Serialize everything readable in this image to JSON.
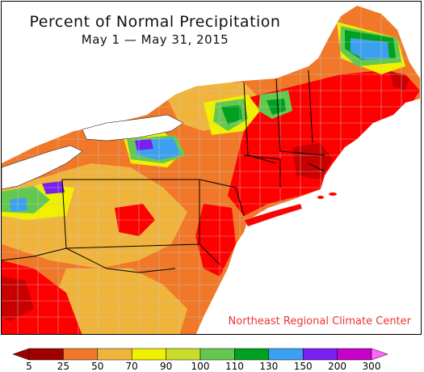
{
  "map": {
    "title": "Percent of Normal Precipitation",
    "date_range": "May 1 — May 31, 2015",
    "credit": "Northeast Regional Climate Center"
  },
  "legend": {
    "ticks": [
      "5",
      "25",
      "50",
      "70",
      "90",
      "100",
      "110",
      "130",
      "150",
      "200",
      "300"
    ],
    "colors": [
      "#a00000",
      "#ff0000",
      "#f07828",
      "#f0b43c",
      "#f0f000",
      "#c8dc28",
      "#64c850",
      "#00a020",
      "#3ca0f0",
      "#7820f0",
      "#c800c8"
    ],
    "under_color": "#a00000",
    "over_color": "#ff66ff"
  },
  "palette": {
    "lake": "#ffffff",
    "ocean": "#ffffff",
    "boundary": "#c8c8c8",
    "state_line": "#000000"
  }
}
